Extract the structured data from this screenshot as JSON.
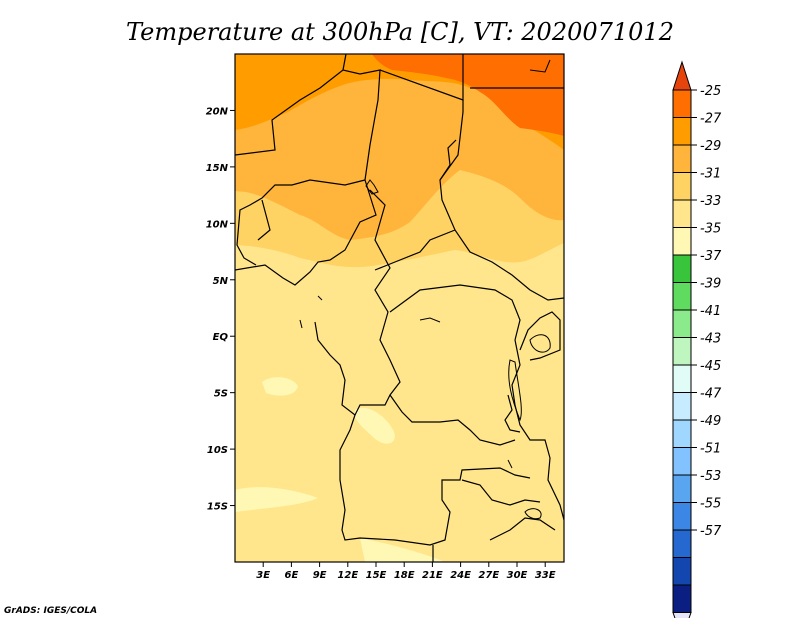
{
  "chart_data": {
    "type": "heatmap",
    "title": "Temperature at 300hPa [C], VT: 2020071012",
    "credit": "GrADS: IGES/COLA",
    "x_ticks": [
      "3E",
      "6E",
      "9E",
      "12E",
      "15E",
      "18E",
      "21E",
      "24E",
      "27E",
      "30E",
      "33E"
    ],
    "y_ticks": [
      "20N",
      "15N",
      "10N",
      "5N",
      "EQ",
      "5S",
      "10S",
      "15S"
    ],
    "xlim": [
      0,
      35
    ],
    "ylim": [
      -20,
      25
    ],
    "colorbar": {
      "labels": [
        "-25",
        "-27",
        "-29",
        "-31",
        "-33",
        "-35",
        "-37",
        "-39",
        "-41",
        "-43",
        "-45",
        "-47",
        "-49",
        "-51",
        "-53",
        "-55",
        "-57"
      ],
      "colors": [
        "#e5440d",
        "#ff6e00",
        "#ff9d00",
        "#ffb43c",
        "#ffd264",
        "#ffe68c",
        "#fff8b4",
        "#38c43b",
        "#5fdc5f",
        "#8bea8b",
        "#bff5bf",
        "#e1fbf6",
        "#c8ecff",
        "#9fd7ff",
        "#82c3ff",
        "#5aa5f0",
        "#3c87e6",
        "#2568d0",
        "#1446b0",
        "#0b1f82",
        "#e6e6fa"
      ]
    },
    "fields": [
      {
        "range": "-33 to -31",
        "region": "southern and central (land and ocean, south of about 8N)"
      },
      {
        "range": "-35 to -33",
        "region": "small patches near 5S-10S and 13S-17S"
      },
      {
        "range": "-31 to -29",
        "region": "north of about 8N"
      },
      {
        "range": "-29 to -27",
        "region": "far north near 20N-25N"
      },
      {
        "range": "-27 to -25",
        "region": "northeast corner near 20N-25N, 25E-35E"
      }
    ]
  }
}
